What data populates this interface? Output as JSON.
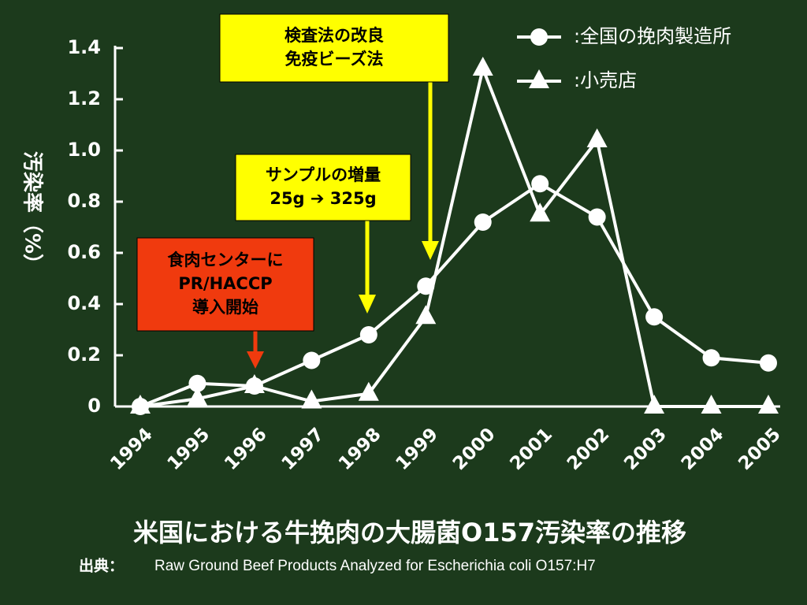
{
  "chart_data": {
    "type": "line",
    "title": "米国における牛挽肉の大腸菌O157汚染率の推移",
    "source_label": "出典：",
    "source": "Raw Ground Beef Products Analyzed for Escherichia coli O157:H7",
    "y_label": "汚染率（%）",
    "categories": [
      "1994",
      "1995",
      "1996",
      "1997",
      "1998",
      "1999",
      "2000",
      "2001",
      "2002",
      "2003",
      "2004",
      "2005"
    ],
    "series": [
      {
        "name": ":全国の挽肉製造所",
        "color": "#ffffff",
        "marker": "circle",
        "values": [
          0,
          0.09,
          0.08,
          0.18,
          0.28,
          0.47,
          0.72,
          0.87,
          0.74,
          0.35,
          0.19,
          0.17
        ]
      },
      {
        "name": ":小売店",
        "color": "#ffffff",
        "marker": "triangle",
        "values": [
          0,
          0.03,
          0.08,
          0.02,
          0.05,
          0.35,
          1.32,
          0.75,
          1.04,
          0,
          0,
          0
        ]
      }
    ],
    "ylim": [
      0,
      1.4
    ],
    "yticks": [
      0,
      0.2,
      0.4,
      0.6,
      0.8,
      {
        "value": 1,
        "label": "1.0"
      },
      1.2,
      1.4
    ],
    "legend": "upper right",
    "annotations": [
      {
        "lines": [
          "食肉センターに",
          "PR/HACCP",
          "導入開始"
        ],
        "color": "#f03a0e"
      },
      {
        "lines": [
          "サンプルの増量",
          "25g ➔ 325g"
        ],
        "color": "#ffff00"
      },
      {
        "lines": [
          "検査法の改良",
          "免疫ビーズ法"
        ],
        "color": "#ffff00"
      }
    ]
  }
}
